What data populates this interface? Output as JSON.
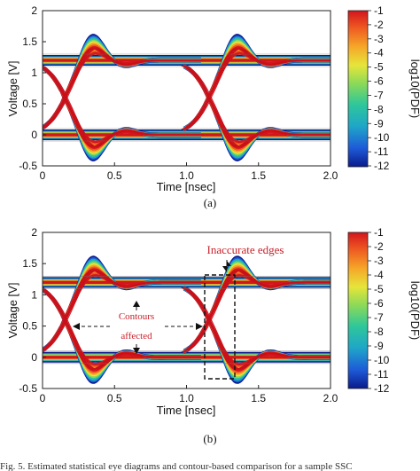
{
  "colors": {
    "colormap": [
      "#0a1a8c",
      "#1e5bd8",
      "#1fa6c8",
      "#2fc79a",
      "#8ad95a",
      "#e6e53a",
      "#f6a628",
      "#ee5a22",
      "#d3151c"
    ],
    "annotation": "#c8202a",
    "frame": "#222222",
    "baseline": "#6b6b6b"
  },
  "chart_data": [
    {
      "type": "heatmap",
      "panel_label": "(a)",
      "xlabel": "Time [nsec]",
      "ylabel": "Voltage [V]",
      "xlim": [
        0,
        2.0
      ],
      "ylim": [
        -0.5,
        2
      ],
      "x_ticks": [
        "0",
        "0.5",
        "1.0",
        "1.5",
        "2.0"
      ],
      "y_ticks": [
        "-0.5",
        "0",
        "0.5",
        "1",
        "1.5",
        "2"
      ],
      "colorbar": {
        "label": "log10(PDF)",
        "range": [
          -12,
          -1
        ],
        "ticks": [
          "-1",
          "-2",
          "-3",
          "-4",
          "-5",
          "-6",
          "-7",
          "-8",
          "-9",
          "-10",
          "-11",
          "-12"
        ]
      },
      "eye": {
        "high_level": 1.2,
        "low_level": 0.0,
        "crossings_ns": [
          0.16,
          1.16
        ],
        "overshoot_peak_ns": [
          0.34,
          1.33
        ],
        "overshoot_peak_v": 1.62,
        "undershoot_peak_v": -0.45
      },
      "annotations": []
    },
    {
      "type": "heatmap",
      "panel_label": "(b)",
      "xlabel": "Time [nsec]",
      "ylabel": "Voltage [V]",
      "xlim": [
        0,
        2.0
      ],
      "ylim": [
        -0.5,
        2
      ],
      "x_ticks": [
        "0",
        "0.5",
        "1.0",
        "1.5",
        "2.0"
      ],
      "y_ticks": [
        "-0.5",
        "0",
        "0.5",
        "1",
        "1.5",
        "2"
      ],
      "colorbar": {
        "label": "log10(PDF)",
        "range": [
          -12,
          -1
        ],
        "ticks": [
          "-1",
          "-2",
          "-3",
          "-4",
          "-5",
          "-6",
          "-7",
          "-8",
          "-9",
          "-10",
          "-11",
          "-12"
        ]
      },
      "eye": {
        "high_level": 1.2,
        "low_level": 0.0,
        "crossings_ns": [
          0.16,
          1.16
        ],
        "overshoot_peak_ns": [
          0.34,
          1.33
        ],
        "overshoot_peak_v": 1.62,
        "undershoot_peak_v": -0.45
      },
      "annotations": [
        {
          "text": "Inaccurate edges",
          "x": 1.35,
          "y": 1.85
        },
        {
          "text": "Contours",
          "x": 0.55,
          "y": 0.72
        },
        {
          "text": "affected",
          "x": 0.55,
          "y": 0.55
        }
      ]
    }
  ],
  "caption": "Fig. 5. Estimated statistical eye diagrams and contour-based comparison for a sample SSC"
}
